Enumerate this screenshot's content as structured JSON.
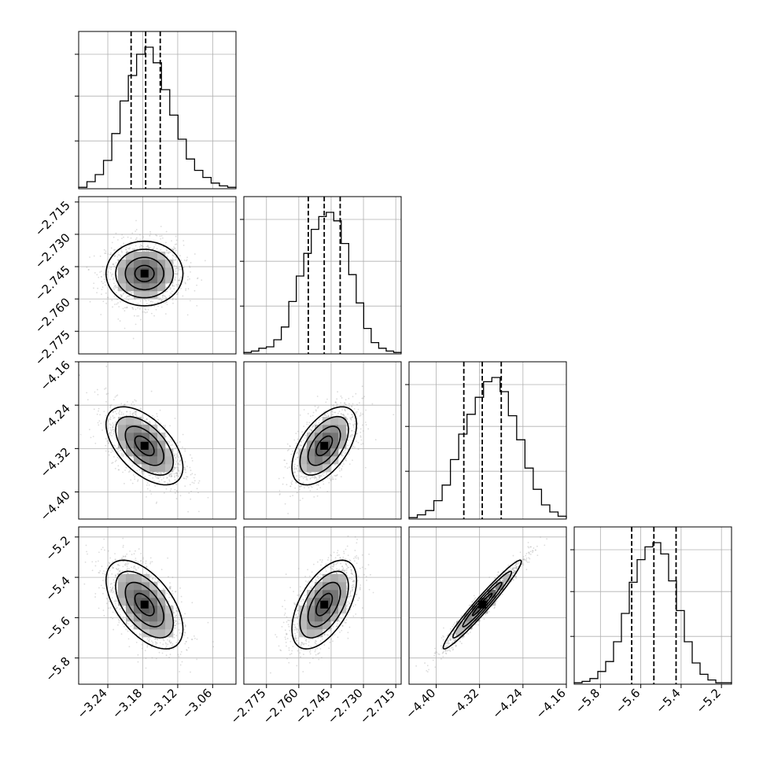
{
  "chart_data": {
    "type": "corner",
    "parameters": [
      {
        "range": [
          -3.29,
          -3.02
        ],
        "ticks": [
          -3.24,
          -3.18,
          -3.12,
          -3.06
        ],
        "tick_labels": [
          "−3.24",
          "−3.18",
          "−3.12",
          "−3.06"
        ],
        "quantiles": [
          -3.2,
          -3.175,
          -3.15
        ],
        "hist_peak": 1.0,
        "hist": [
          0.01,
          0.05,
          0.1,
          0.2,
          0.39,
          0.62,
          0.8,
          0.95,
          1.0,
          0.89,
          0.7,
          0.52,
          0.35,
          0.21,
          0.13,
          0.08,
          0.04,
          0.02,
          0.01
        ]
      },
      {
        "range": [
          -2.7855,
          -2.7125
        ],
        "ticks": [
          -2.775,
          -2.76,
          -2.745,
          -2.73,
          -2.715
        ],
        "tick_labels": [
          "−2.775",
          "−2.760",
          "−2.745",
          "−2.730",
          "−2.715"
        ],
        "quantiles": [
          -2.7556,
          -2.7482,
          -2.7408
        ],
        "hist_peak": 1.0,
        "hist": [
          0.01,
          0.02,
          0.04,
          0.05,
          0.1,
          0.19,
          0.37,
          0.55,
          0.71,
          0.88,
          0.97,
          1.0,
          0.94,
          0.78,
          0.56,
          0.36,
          0.18,
          0.08,
          0.04,
          0.02,
          0.01
        ]
      },
      {
        "range": [
          -4.45,
          -4.16
        ],
        "ticks": [
          -4.4,
          -4.32,
          -4.24,
          -4.16
        ],
        "tick_labels": [
          "−4.40",
          "−4.32",
          "−4.24",
          "−4.16"
        ],
        "quantiles": [
          -4.349,
          -4.315,
          -4.28
        ],
        "hist_peak": 1.0,
        "hist": [
          0.01,
          0.03,
          0.06,
          0.13,
          0.24,
          0.42,
          0.6,
          0.74,
          0.86,
          0.97,
          1.0,
          0.9,
          0.73,
          0.56,
          0.36,
          0.21,
          0.1,
          0.05,
          0.02
        ]
      },
      {
        "range": [
          -5.93,
          -5.15
        ],
        "ticks": [
          -5.8,
          -5.6,
          -5.4,
          -5.2
        ],
        "tick_labels": [
          "−5.8",
          "−5.6",
          "−5.4",
          "−5.2"
        ],
        "quantiles": [
          -5.645,
          -5.535,
          -5.425
        ],
        "hist_peak": 1.0,
        "hist": [
          0.01,
          0.02,
          0.04,
          0.09,
          0.16,
          0.3,
          0.5,
          0.72,
          0.88,
          0.97,
          1.0,
          0.92,
          0.73,
          0.52,
          0.3,
          0.15,
          0.07,
          0.03,
          0.01,
          0.01
        ]
      }
    ],
    "pairs": [
      {
        "row": 1,
        "col": 0,
        "center": [
          -3.177,
          -2.7482
        ],
        "sd": [
          0.033,
          0.0075
        ],
        "rho": 0.0
      },
      {
        "row": 2,
        "col": 0,
        "center": [
          -3.177,
          -4.315
        ],
        "sd": [
          0.033,
          0.036
        ],
        "rho": -0.55
      },
      {
        "row": 2,
        "col": 1,
        "center": [
          -2.7482,
          -4.315
        ],
        "sd": [
          0.0075,
          0.036
        ],
        "rho": 0.55
      },
      {
        "row": 3,
        "col": 0,
        "center": [
          -3.177,
          -5.535
        ],
        "sd": [
          0.033,
          0.11
        ],
        "rho": -0.55
      },
      {
        "row": 3,
        "col": 1,
        "center": [
          -2.7482,
          -5.535
        ],
        "sd": [
          0.0075,
          0.11
        ],
        "rho": 0.55
      },
      {
        "row": 3,
        "col": 2,
        "center": [
          -4.315,
          -5.535
        ],
        "sd": [
          0.036,
          0.11
        ],
        "rho": 0.97
      }
    ],
    "contour_levels": [
      0.5,
      1.0,
      1.5,
      2.0
    ],
    "grid": true,
    "colors": {
      "line": "#000000",
      "grid": "#b0b0b0",
      "scatter": "#9a9a9a"
    }
  }
}
